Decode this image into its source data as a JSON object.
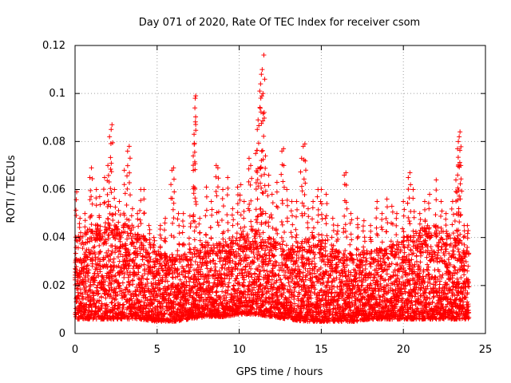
{
  "chart_data": {
    "type": "scatter",
    "title": "Day 071 of 2020, Rate Of TEC Index for receiver csom",
    "xlabel": "GPS time / hours",
    "ylabel": "ROTI / TECUs",
    "xlim": [
      0,
      25
    ],
    "ylim": [
      0,
      0.12
    ],
    "xticks": [
      "0",
      "5",
      "10",
      "15",
      "20",
      "25"
    ],
    "yticks": [
      "0",
      "0.02",
      "0.04",
      "0.06",
      "0.08",
      "0.1",
      "0.12"
    ],
    "grid": true,
    "legend": "none",
    "marker": "+",
    "color": "#ff0000",
    "series": [
      {
        "points": [
          [
            0.1,
            0.059
          ],
          [
            0.3,
            0.048
          ],
          [
            0.6,
            0.05
          ],
          [
            0.9,
            0.065
          ],
          [
            1.0,
            0.069
          ],
          [
            1.3,
            0.06
          ],
          [
            1.5,
            0.057
          ],
          [
            1.8,
            0.065
          ],
          [
            2.0,
            0.07
          ],
          [
            2.1,
            0.082
          ],
          [
            2.2,
            0.085
          ],
          [
            2.25,
            0.087
          ],
          [
            2.4,
            0.06
          ],
          [
            2.7,
            0.055
          ],
          [
            3.0,
            0.068
          ],
          [
            3.2,
            0.076
          ],
          [
            3.3,
            0.078
          ],
          [
            3.5,
            0.052
          ],
          [
            3.8,
            0.05
          ],
          [
            4.0,
            0.06
          ],
          [
            4.2,
            0.06
          ],
          [
            4.5,
            0.045
          ],
          [
            4.8,
            0.04
          ],
          [
            5.2,
            0.045
          ],
          [
            5.5,
            0.048
          ],
          [
            5.9,
            0.068
          ],
          [
            6.0,
            0.069
          ],
          [
            6.3,
            0.05
          ],
          [
            6.6,
            0.05
          ],
          [
            7.0,
            0.049
          ],
          [
            7.2,
            0.074
          ],
          [
            7.25,
            0.083
          ],
          [
            7.3,
            0.094
          ],
          [
            7.32,
            0.098
          ],
          [
            7.35,
            0.099
          ],
          [
            7.6,
            0.048
          ],
          [
            8.0,
            0.061
          ],
          [
            8.3,
            0.055
          ],
          [
            8.6,
            0.07
          ],
          [
            8.7,
            0.069
          ],
          [
            9.0,
            0.06
          ],
          [
            9.3,
            0.065
          ],
          [
            9.6,
            0.052
          ],
          [
            9.9,
            0.061
          ],
          [
            10.1,
            0.062
          ],
          [
            10.3,
            0.055
          ],
          [
            10.6,
            0.073
          ],
          [
            10.7,
            0.07
          ],
          [
            11.0,
            0.075
          ],
          [
            11.1,
            0.085
          ],
          [
            11.15,
            0.089
          ],
          [
            11.25,
            0.101
          ],
          [
            11.3,
            0.104
          ],
          [
            11.35,
            0.108
          ],
          [
            11.4,
            0.11
          ],
          [
            11.45,
            0.1
          ],
          [
            11.5,
            0.116
          ],
          [
            11.6,
            0.074
          ],
          [
            11.8,
            0.066
          ],
          [
            12.0,
            0.058
          ],
          [
            12.3,
            0.063
          ],
          [
            12.6,
            0.076
          ],
          [
            12.7,
            0.077
          ],
          [
            12.9,
            0.06
          ],
          [
            13.2,
            0.055
          ],
          [
            13.5,
            0.055
          ],
          [
            13.8,
            0.073
          ],
          [
            13.9,
            0.078
          ],
          [
            14.0,
            0.079
          ],
          [
            14.2,
            0.052
          ],
          [
            14.5,
            0.055
          ],
          [
            14.8,
            0.06
          ],
          [
            15.0,
            0.06
          ],
          [
            15.3,
            0.058
          ],
          [
            15.7,
            0.048
          ],
          [
            16.0,
            0.045
          ],
          [
            16.4,
            0.066
          ],
          [
            16.5,
            0.067
          ],
          [
            16.8,
            0.05
          ],
          [
            17.2,
            0.048
          ],
          [
            17.6,
            0.047
          ],
          [
            18.0,
            0.045
          ],
          [
            18.4,
            0.055
          ],
          [
            18.7,
            0.05
          ],
          [
            19.0,
            0.056
          ],
          [
            19.3,
            0.053
          ],
          [
            19.6,
            0.05
          ],
          [
            20.0,
            0.055
          ],
          [
            20.3,
            0.065
          ],
          [
            20.4,
            0.067
          ],
          [
            20.6,
            0.06
          ],
          [
            21.0,
            0.05
          ],
          [
            21.3,
            0.055
          ],
          [
            21.6,
            0.058
          ],
          [
            22.0,
            0.064
          ],
          [
            22.3,
            0.055
          ],
          [
            22.6,
            0.05
          ],
          [
            23.0,
            0.055
          ],
          [
            23.2,
            0.064
          ],
          [
            23.3,
            0.077
          ],
          [
            23.35,
            0.08
          ],
          [
            23.4,
            0.082
          ],
          [
            23.45,
            0.084
          ],
          [
            23.5,
            0.07
          ],
          [
            23.7,
            0.045
          ],
          [
            23.9,
            0.045
          ]
        ],
        "base_band": {
          "x": [
            0.0,
            0.5,
            1.0,
            2.0,
            3.0,
            4.0,
            5.0,
            6.0,
            7.0,
            8.0,
            9.0,
            10.0,
            11.0,
            12.0,
            13.0,
            14.0,
            15.0,
            16.0,
            17.0,
            18.0,
            19.0,
            20.0,
            21.0,
            22.0,
            23.0,
            24.0
          ],
          "low": [
            0.006,
            0.006,
            0.006,
            0.006,
            0.006,
            0.006,
            0.005,
            0.005,
            0.006,
            0.007,
            0.007,
            0.008,
            0.008,
            0.007,
            0.006,
            0.005,
            0.005,
            0.005,
            0.005,
            0.006,
            0.006,
            0.006,
            0.006,
            0.006,
            0.006,
            0.006
          ],
          "high": [
            0.04,
            0.042,
            0.045,
            0.048,
            0.046,
            0.042,
            0.035,
            0.032,
            0.035,
            0.038,
            0.038,
            0.042,
            0.045,
            0.04,
            0.036,
            0.04,
            0.042,
            0.035,
            0.033,
            0.035,
            0.036,
            0.04,
            0.045,
            0.045,
            0.042,
            0.035
          ]
        }
      }
    ]
  }
}
